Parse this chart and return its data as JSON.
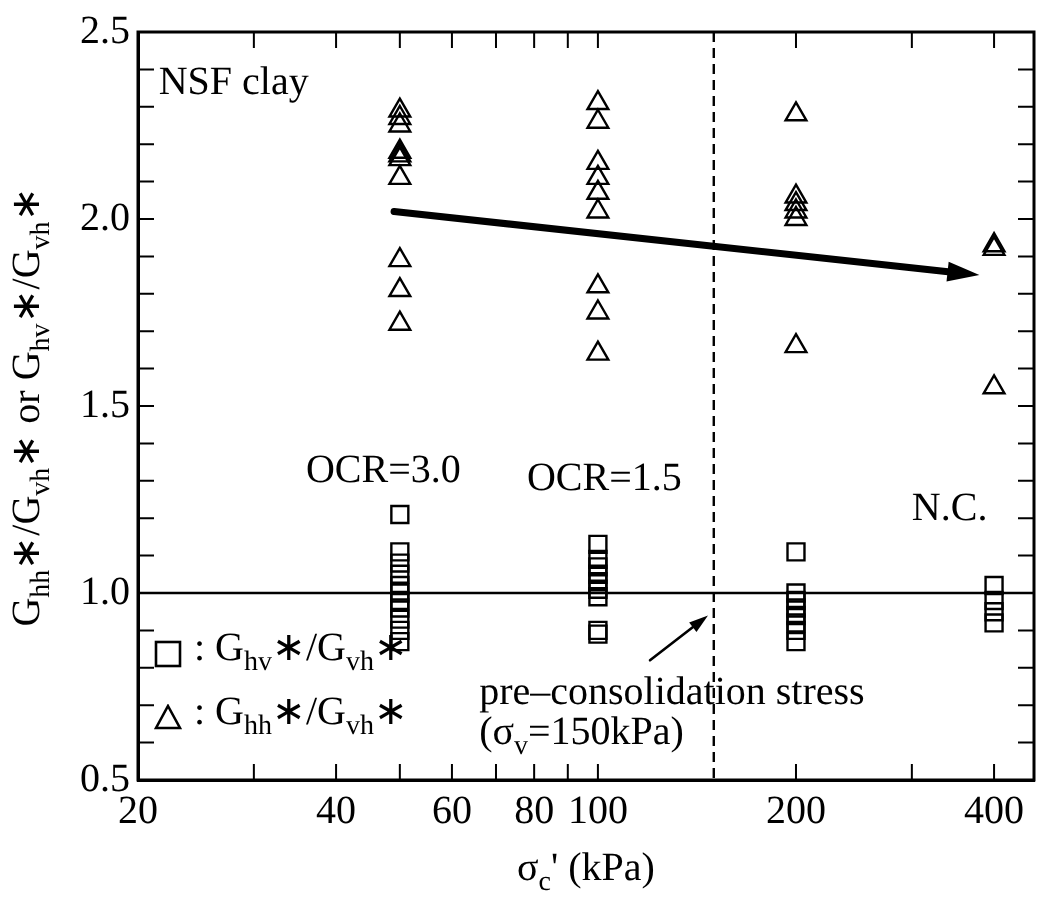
{
  "chart_data": {
    "type": "scatter",
    "xlabel": "σ$_{c}$' (kPa)",
    "ylabel": "G$_{hh}$∗/G$_{vh}$∗ or G$_{hv}$∗/G$_{vh}$∗",
    "log": "x",
    "xlim": [
      20,
      460
    ],
    "xticks": [
      20,
      {
        "value": 30,
        "label": null
      },
      40,
      {
        "value": 50,
        "label": null
      },
      60,
      {
        "value": 70,
        "label": null
      },
      80,
      {
        "value": 90,
        "label": null
      },
      100,
      200,
      {
        "value": 300,
        "label": null
      },
      400
    ],
    "ylim": [
      0.5,
      2.5
    ],
    "yticks": [
      "0.5",
      {
        "value": 0.6,
        "label": null
      },
      {
        "value": 0.7,
        "label": null
      },
      {
        "value": 0.8,
        "label": null
      },
      {
        "value": 0.9,
        "label": null
      },
      {
        "value": 1.0,
        "label": "1.0"
      },
      {
        "value": 1.1,
        "label": null
      },
      {
        "value": 1.2,
        "label": null
      },
      {
        "value": 1.3,
        "label": null
      },
      {
        "value": 1.4,
        "label": null
      },
      1.5,
      {
        "value": 1.6,
        "label": null
      },
      {
        "value": 1.7,
        "label": null
      },
      {
        "value": 1.8,
        "label": null
      },
      {
        "value": 1.9,
        "label": null
      },
      {
        "value": 2.0,
        "label": "2.0"
      },
      {
        "value": 2.1,
        "label": null
      },
      {
        "value": 2.2,
        "label": null
      },
      {
        "value": 2.3,
        "label": null
      },
      {
        "value": 2.4,
        "label": null
      },
      2.5
    ],
    "grid": false,
    "legend": "bottom left",
    "series": [
      {
        "name": ": G$_{hv}$∗/G$_{vh}$∗",
        "color": "#000000",
        "marker": "square",
        "x": [
          50,
          50,
          50,
          50,
          50,
          50,
          50,
          50,
          50,
          50,
          50,
          100,
          100,
          100,
          100,
          100,
          100,
          100,
          100,
          100,
          200,
          200,
          200,
          200,
          200,
          200,
          200,
          200,
          400,
          400,
          400,
          400
        ],
        "values": [
          1.21,
          1.11,
          1.08,
          1.05,
          1.02,
          1.0,
          0.98,
          0.96,
          0.93,
          0.9,
          0.87,
          1.13,
          1.09,
          1.07,
          1.05,
          1.03,
          1.01,
          0.99,
          0.9,
          0.89,
          1.11,
          1.0,
          0.98,
          0.96,
          0.94,
          0.92,
          0.9,
          0.87,
          1.02,
          0.98,
          0.95,
          0.92
        ]
      },
      {
        "name": ": G$_{hh}$∗/G$_{vh}$∗",
        "color": "#000000",
        "marker": "triangle",
        "x": [
          50,
          50,
          50,
          50,
          50,
          50,
          50,
          50,
          50,
          50,
          100,
          100,
          100,
          100,
          100,
          100,
          100,
          100,
          100,
          200,
          200,
          200,
          200,
          200,
          200,
          400,
          400,
          400
        ],
        "values": [
          2.29,
          2.27,
          2.25,
          2.18,
          2.17,
          2.16,
          2.11,
          1.89,
          1.81,
          1.72,
          2.31,
          2.26,
          2.15,
          2.11,
          2.07,
          2.02,
          1.82,
          1.75,
          1.64,
          2.28,
          2.06,
          2.04,
          2.02,
          2.0,
          1.66,
          1.93,
          1.92,
          1.55
        ]
      }
    ],
    "ref_lines": [
      {
        "axis": "y",
        "value": 1.0,
        "line_style": "solid"
      },
      {
        "axis": "x",
        "value": 150,
        "line_style": "dashed"
      }
    ],
    "annotations": [
      "NSF clay",
      "OCR=3.0",
      "OCR=1.5",
      "N.C.",
      "pre–consolidation stress",
      "(σ$_{v}$=150kPa)"
    ]
  }
}
